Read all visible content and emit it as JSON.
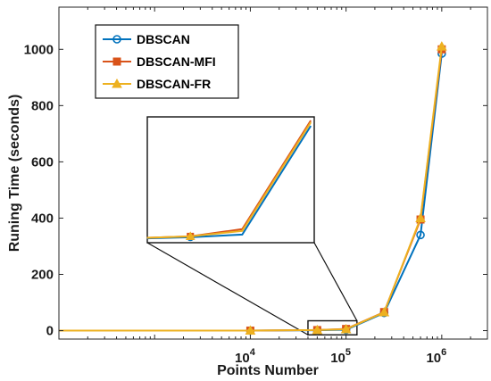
{
  "chart_data": {
    "type": "line",
    "xlabel": "Points Number",
    "ylabel": "Runing Time (seconds)",
    "xscale": "log",
    "xlim": [
      100,
      3000000
    ],
    "ylim": [
      -30,
      1150
    ],
    "x_ticks": [
      {
        "value": 10000,
        "base": "10",
        "exp": "4"
      },
      {
        "value": 100000,
        "base": "10",
        "exp": "5"
      },
      {
        "value": 1000000,
        "base": "10",
        "exp": "6"
      }
    ],
    "y_ticks": [
      "0",
      "200",
      "400",
      "600",
      "800",
      "1000"
    ],
    "y_tick_values": [
      0,
      200,
      400,
      600,
      800,
      1000
    ],
    "legend_position": "top-left",
    "x": [
      100,
      10000,
      50000,
      100000,
      250000,
      600000,
      1000000
    ],
    "series": [
      {
        "name": "DBSCAN",
        "color": "#0072BD",
        "marker": "circle",
        "values": [
          0,
          0,
          1.5,
          3,
          63,
          340,
          985
        ]
      },
      {
        "name": "DBSCAN-MFI",
        "color": "#D95319",
        "marker": "square",
        "values": [
          0,
          0,
          2,
          6,
          66,
          395,
          1000
        ]
      },
      {
        "name": "DBSCAN-FR",
        "color": "#EDB120",
        "marker": "triangle",
        "values": [
          0,
          0,
          2,
          5,
          65,
          400,
          1010
        ]
      }
    ],
    "inset": {
      "x": [
        50000,
        100000,
        250000
      ],
      "y_range": [
        0,
        90
      ],
      "zoom_xlim": [
        40000,
        130000
      ],
      "zoom_ylim": [
        -15,
        35
      ]
    }
  }
}
